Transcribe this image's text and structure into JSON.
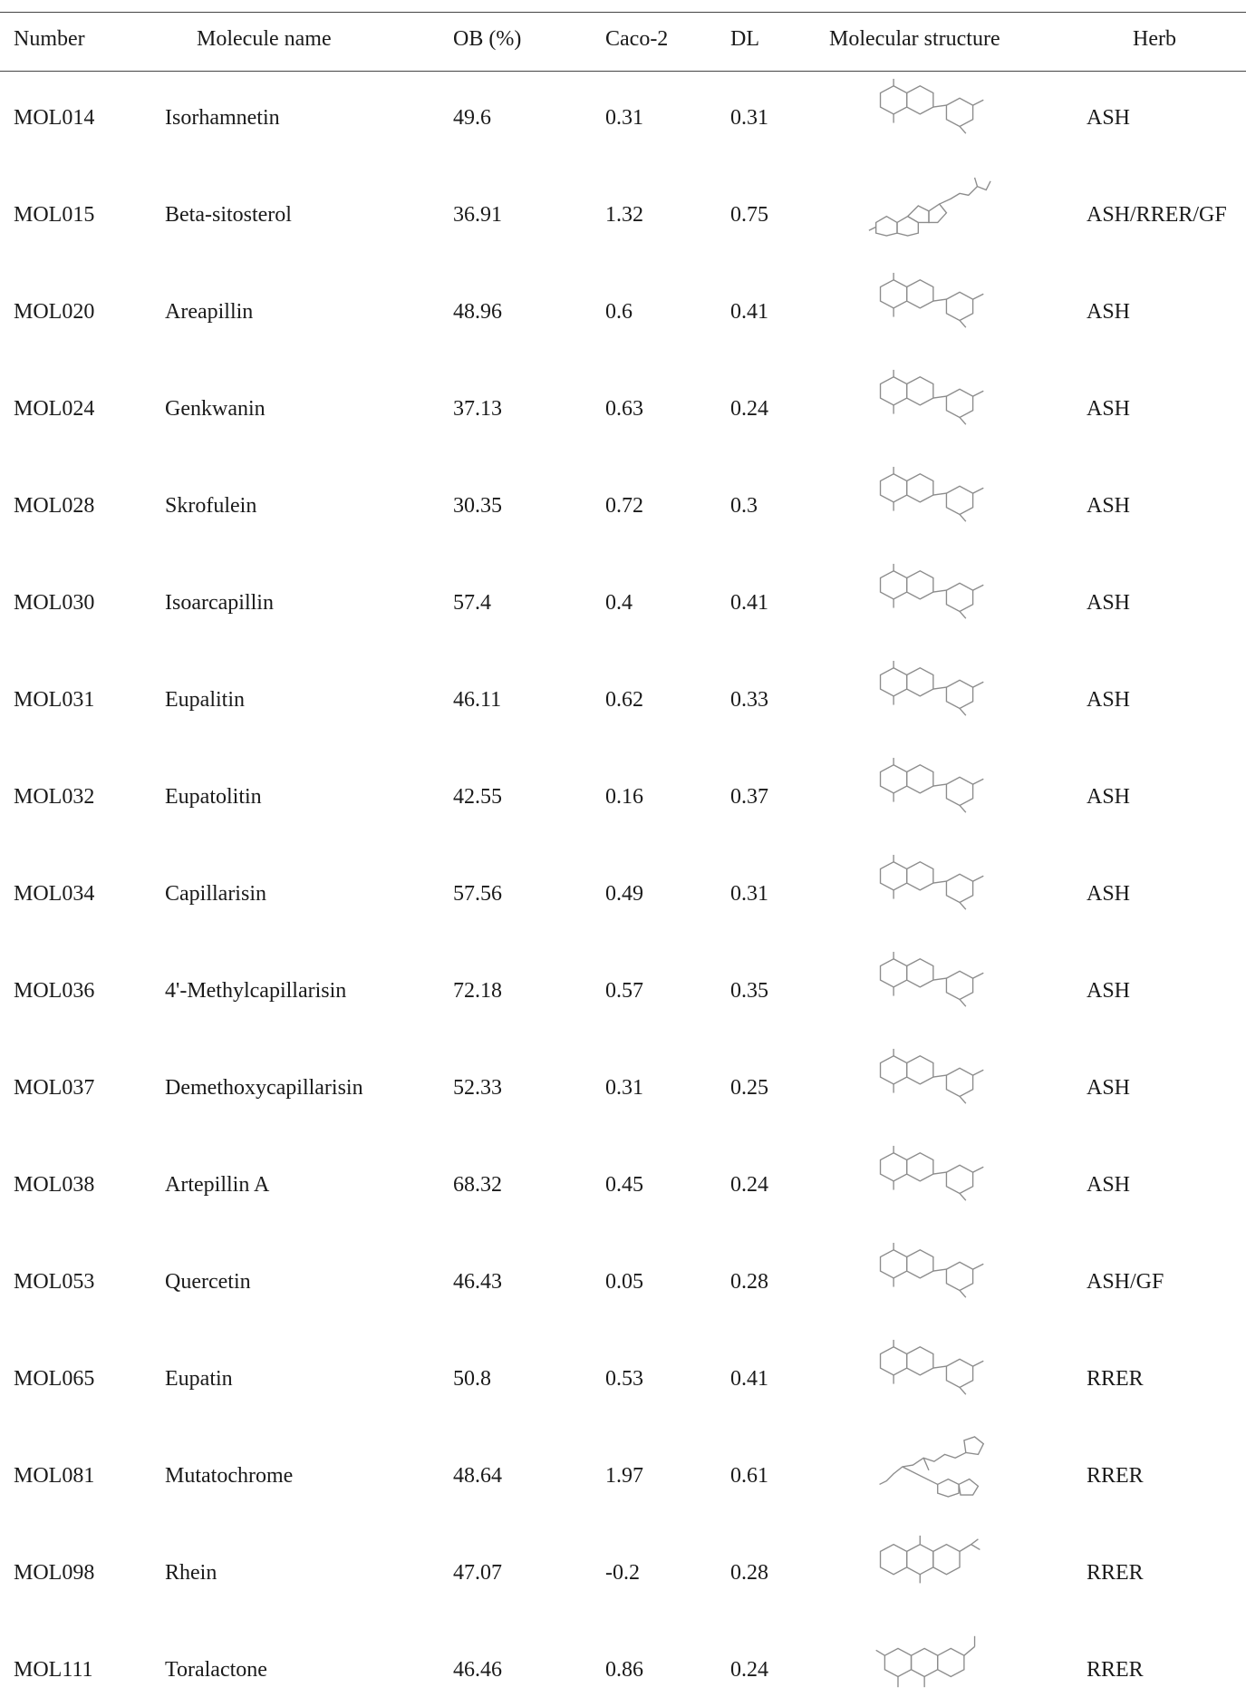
{
  "headers": {
    "number": "Number",
    "name": "Molecule name",
    "ob": "OB (%)",
    "caco": "Caco-2",
    "dl": "DL",
    "structure": "Molecular structure",
    "herb": "Herb"
  },
  "rows": [
    {
      "number": "MOL014",
      "name": "Isorhamnetin",
      "ob": "49.6",
      "caco": "0.31",
      "dl": "0.31",
      "herb": "ASH"
    },
    {
      "number": "MOL015",
      "name": "Beta-sitosterol",
      "ob": "36.91",
      "caco": "1.32",
      "dl": "0.75",
      "herb": "ASH/RRER/GF"
    },
    {
      "number": "MOL020",
      "name": "Areapillin",
      "ob": "48.96",
      "caco": "0.6",
      "dl": "0.41",
      "herb": "ASH"
    },
    {
      "number": "MOL024",
      "name": "Genkwanin",
      "ob": "37.13",
      "caco": "0.63",
      "dl": "0.24",
      "herb": "ASH"
    },
    {
      "number": "MOL028",
      "name": "Skrofulein",
      "ob": "30.35",
      "caco": "0.72",
      "dl": "0.3",
      "herb": "ASH"
    },
    {
      "number": "MOL030",
      "name": "Isoarcapillin",
      "ob": "57.4",
      "caco": "0.4",
      "dl": "0.41",
      "herb": "ASH"
    },
    {
      "number": "MOL031",
      "name": "Eupalitin",
      "ob": "46.11",
      "caco": "0.62",
      "dl": "0.33",
      "herb": "ASH"
    },
    {
      "number": "MOL032",
      "name": "Eupatolitin",
      "ob": "42.55",
      "caco": "0.16",
      "dl": "0.37",
      "herb": "ASH"
    },
    {
      "number": "MOL034",
      "name": "Capillarisin",
      "ob": "57.56",
      "caco": "0.49",
      "dl": "0.31",
      "herb": "ASH"
    },
    {
      "number": "MOL036",
      "name": "4'-Methylcapillarisin",
      "ob": "72.18",
      "caco": "0.57",
      "dl": "0.35",
      "herb": "ASH"
    },
    {
      "number": "MOL037",
      "name": "Demethoxycapillarisin",
      "ob": "52.33",
      "caco": "0.31",
      "dl": "0.25",
      "herb": "ASH"
    },
    {
      "number": "MOL038",
      "name": "Artepillin A",
      "ob": "68.32",
      "caco": "0.45",
      "dl": "0.24",
      "herb": "ASH"
    },
    {
      "number": "MOL053",
      "name": "Quercetin",
      "ob": "46.43",
      "caco": "0.05",
      "dl": "0.28",
      "herb": "ASH/GF"
    },
    {
      "number": "MOL065",
      "name": "Eupatin",
      "ob": "50.8",
      "caco": "0.53",
      "dl": "0.41",
      "herb": "RRER"
    },
    {
      "number": "MOL081",
      "name": "Mutatochrome",
      "ob": "48.64",
      "caco": "1.97",
      "dl": "0.61",
      "herb": "RRER"
    },
    {
      "number": "MOL098",
      "name": "Rhein",
      "ob": "47.07",
      "caco": "-0.2",
      "dl": "0.28",
      "herb": "RRER"
    },
    {
      "number": "MOL111",
      "name": "Toralactone",
      "ob": "46.46",
      "caco": "0.86",
      "dl": "0.24",
      "herb": "RRER"
    }
  ]
}
